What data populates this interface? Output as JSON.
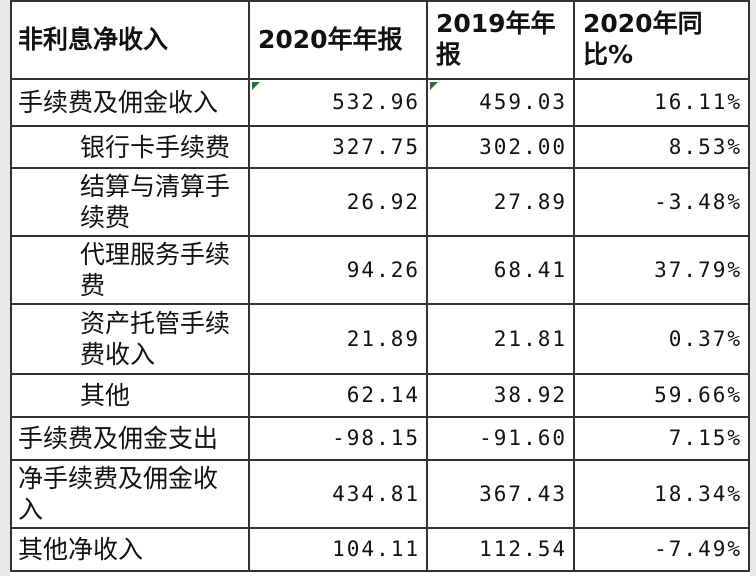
{
  "table": {
    "header": [
      "非利息净收入",
      "2020年年报",
      "2019年年报",
      "2020年同比%"
    ],
    "rows": [
      {
        "label": "手续费及佣金收入",
        "indent": false,
        "cells": [
          "532.96",
          "459.03",
          "16.11%"
        ]
      },
      {
        "label": "银行卡手续费",
        "indent": true,
        "cells": [
          "327.75",
          "302.00",
          "8.53%"
        ]
      },
      {
        "label": "结算与清算手续费",
        "indent": true,
        "cells": [
          "26.92",
          "27.89",
          "-3.48%"
        ]
      },
      {
        "label": "代理服务手续费",
        "indent": true,
        "cells": [
          "94.26",
          "68.41",
          "37.79%"
        ]
      },
      {
        "label": "资产托管手续费收入",
        "indent": true,
        "cells": [
          "21.89",
          "21.81",
          "0.37%"
        ]
      },
      {
        "label": "其他",
        "indent": true,
        "cells": [
          "62.14",
          "38.92",
          "59.66%"
        ]
      },
      {
        "label": "手续费及佣金支出",
        "indent": false,
        "cells": [
          "-98.15",
          "-91.60",
          "7.15%"
        ]
      },
      {
        "label": "净手续费及佣金收入",
        "indent": false,
        "cells": [
          "434.81",
          "367.43",
          "18.34%"
        ]
      },
      {
        "label": "其他净收入",
        "indent": false,
        "cells": [
          "104.11",
          "112.54",
          "-7.49%"
        ]
      }
    ]
  }
}
